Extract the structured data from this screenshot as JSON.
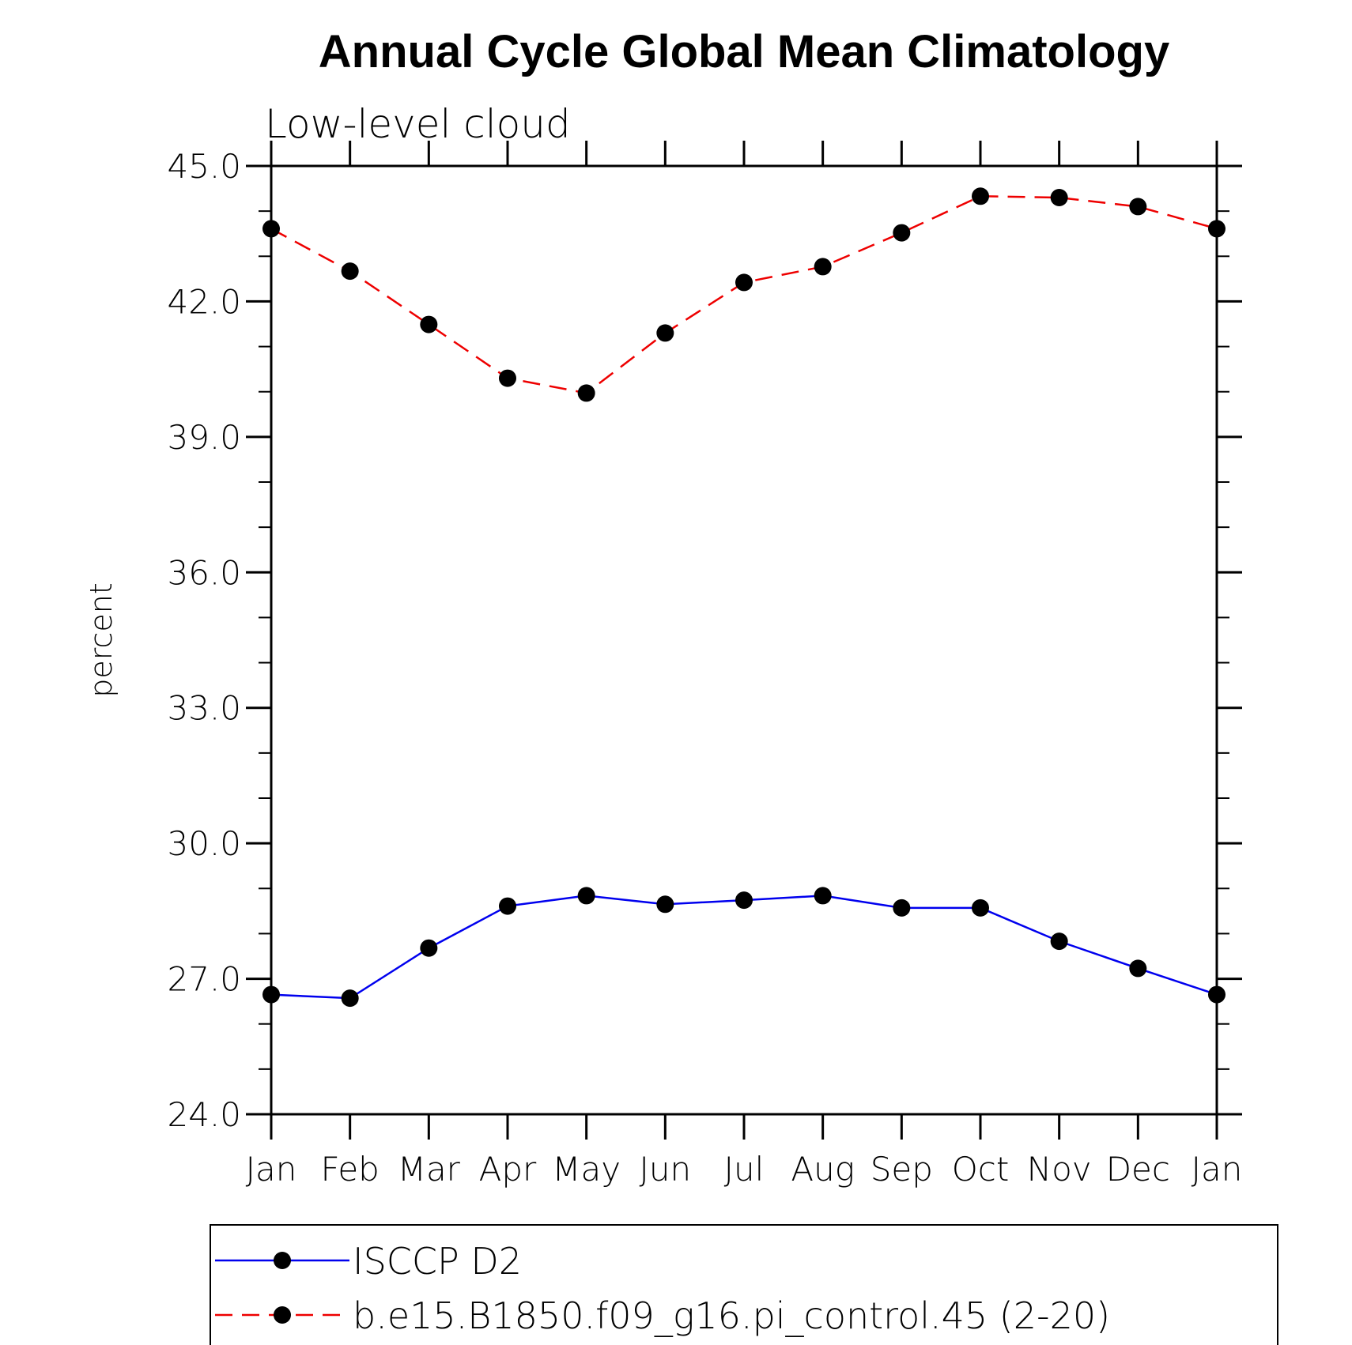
{
  "chart_data": {
    "type": "line",
    "title": "Annual Cycle Global Mean Climatology",
    "subtitle": "Low-level cloud",
    "xlabel": "",
    "ylabel": "percent",
    "categories": [
      "Jan",
      "Feb",
      "Mar",
      "Apr",
      "May",
      "Jun",
      "Jul",
      "Aug",
      "Sep",
      "Oct",
      "Nov",
      "Dec",
      "Jan"
    ],
    "ylim": [
      24.0,
      45.0
    ],
    "yticks": [
      "24.0",
      "27.0",
      "30.0",
      "33.0",
      "36.0",
      "39.0",
      "42.0",
      "45.0"
    ],
    "grid": false,
    "legend_position": "bottom",
    "series": [
      {
        "name": "ISCCP D2",
        "color": "#0000ee",
        "dash": "solid",
        "values": [
          26.65,
          26.57,
          27.68,
          28.61,
          28.84,
          28.65,
          28.74,
          28.84,
          28.57,
          28.57,
          27.83,
          27.23,
          26.65
        ]
      },
      {
        "name": "b.e15.B1850.f09_g16.pi_control.45 (2-20)",
        "color": "#ee0000",
        "dash": "dashed",
        "values": [
          43.61,
          42.67,
          41.49,
          40.3,
          39.97,
          41.3,
          42.42,
          42.77,
          43.52,
          44.33,
          44.3,
          44.1,
          43.61
        ]
      }
    ]
  }
}
